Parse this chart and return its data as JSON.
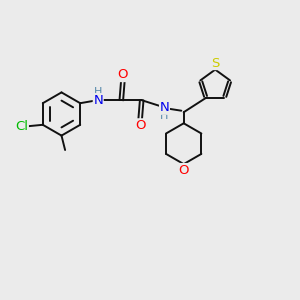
{
  "background_color": "#ebebeb",
  "atoms": {
    "Cl": {
      "color": "#00bb00"
    },
    "O": {
      "color": "#ff0000"
    },
    "N": {
      "color": "#0000ee"
    },
    "S": {
      "color": "#cccc00"
    },
    "H_color": "#5588aa"
  },
  "bond_color": "#111111",
  "bond_width": 1.4,
  "figsize": [
    3.0,
    3.0
  ],
  "dpi": 100
}
